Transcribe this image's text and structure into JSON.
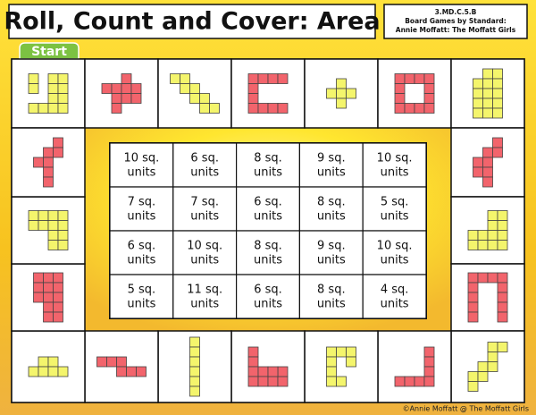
{
  "header": {
    "title": "Roll, Count and Cover: Area",
    "standard": "3.MD.C.5.B",
    "series": "Board Games by Standard:",
    "author": "Annie Moffatt: The Moffatt Girls"
  },
  "start": "Start",
  "grid": {
    "rows": [
      [
        [
          "10 sq.",
          "units"
        ],
        [
          "6 sq.",
          "units"
        ],
        [
          "8 sq.",
          "units"
        ],
        [
          "9 sq.",
          "units"
        ],
        [
          "10 sq.",
          "units"
        ]
      ],
      [
        [
          "7 sq.",
          "units"
        ],
        [
          "7 sq.",
          "units"
        ],
        [
          "6 sq.",
          "units"
        ],
        [
          "8 sq.",
          "units"
        ],
        [
          "5 sq.",
          "units"
        ]
      ],
      [
        [
          "6 sq.",
          "units"
        ],
        [
          "10 sq.",
          "units"
        ],
        [
          "8 sq.",
          "units"
        ],
        [
          "9 sq.",
          "units"
        ],
        [
          "10 sq.",
          "units"
        ]
      ],
      [
        [
          "5 sq.",
          "units"
        ],
        [
          "11 sq.",
          "units"
        ],
        [
          "6 sq.",
          "units"
        ],
        [
          "8 sq.",
          "units"
        ],
        [
          "4 sq.",
          "units"
        ]
      ]
    ]
  },
  "footer": "©Annie Moffatt @ The Moffatt Girls"
}
